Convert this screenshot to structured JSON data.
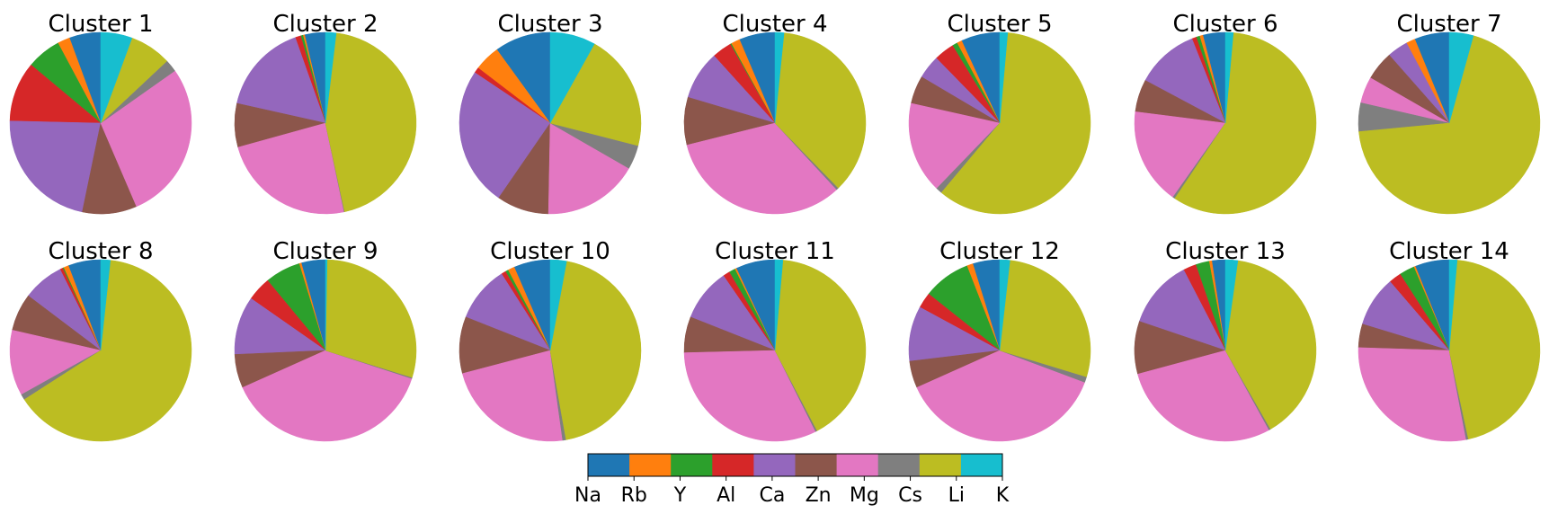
{
  "chart_data": {
    "type": "pie",
    "start_angle_deg": 90,
    "direction": "counterclockwise",
    "categories": [
      "Na",
      "Rb",
      "Y",
      "Al",
      "Ca",
      "Zn",
      "Mg",
      "Cs",
      "Li",
      "K"
    ],
    "colors": [
      "#1f77b4",
      "#ff7f0e",
      "#2ca02c",
      "#d62728",
      "#9467bd",
      "#8c564b",
      "#e377c2",
      "#7f7f7f",
      "#bcbd22",
      "#17becf"
    ],
    "legend": {
      "type": "colorbar",
      "placement": "bottom-center",
      "labels": [
        "Na",
        "Rb",
        "Y",
        "Al",
        "Ca",
        "Zn",
        "Mg",
        "Cs",
        "Li",
        "K"
      ]
    },
    "charts": [
      {
        "title": "Cluster 1",
        "values": [
          5.6,
          2.2,
          6.1,
          10.7,
          22.1,
          9.7,
          28.3,
          2.2,
          7.4,
          5.6
        ]
      },
      {
        "title": "Cluster 2",
        "values": [
          3.7,
          0.3,
          0.4,
          1.0,
          16.1,
          7.8,
          24.0,
          0.1,
          44.7,
          1.9
        ]
      },
      {
        "title": "Cluster 3",
        "values": [
          10.0,
          4.6,
          0.0,
          1.0,
          24.8,
          9.3,
          17.0,
          4.3,
          20.9,
          8.1
        ]
      },
      {
        "title": "Cluster 4",
        "values": [
          6.4,
          1.6,
          0.2,
          3.5,
          8.7,
          8.5,
          33.0,
          0.4,
          36.1,
          1.6
        ]
      },
      {
        "title": "Cluster 5",
        "values": [
          6.9,
          0.9,
          0.9,
          3.6,
          4.2,
          5.0,
          16.3,
          1.1,
          59.7,
          1.4
        ]
      },
      {
        "title": "Cluster 6",
        "values": [
          4.0,
          0.6,
          0.6,
          0.8,
          11.2,
          5.8,
          17.2,
          0.4,
          58.0,
          1.4
        ]
      },
      {
        "title": "Cluster 7",
        "values": [
          6.2,
          1.6,
          0.0,
          0.0,
          3.7,
          5.2,
          4.7,
          5.1,
          69.2,
          4.3
        ]
      },
      {
        "title": "Cluster 8",
        "values": [
          5.8,
          0.9,
          0.2,
          0.5,
          7.3,
          6.7,
          11.7,
          1.0,
          64.2,
          1.7
        ]
      },
      {
        "title": "Cluster 9",
        "values": [
          4.3,
          0.4,
          6.3,
          4.3,
          10.4,
          6.0,
          38.3,
          0.2,
          29.5,
          0.3
        ]
      },
      {
        "title": "Cluster 10",
        "values": [
          6.5,
          1.2,
          0.5,
          0.8,
          10.0,
          10.1,
          23.1,
          0.6,
          44.3,
          2.9
        ]
      },
      {
        "title": "Cluster 11",
        "values": [
          7.0,
          0.3,
          1.1,
          1.2,
          9.4,
          6.4,
          32.0,
          0.3,
          40.9,
          1.4
        ]
      },
      {
        "title": "Cluster 12",
        "values": [
          4.8,
          1.1,
          8.4,
          2.8,
          9.8,
          4.8,
          37.6,
          1.0,
          27.9,
          1.8
        ]
      },
      {
        "title": "Cluster 13",
        "values": [
          2.4,
          0.5,
          2.4,
          2.3,
          12.2,
          9.4,
          28.8,
          0.3,
          39.5,
          2.2
        ]
      },
      {
        "title": "Cluster 14",
        "values": [
          6.1,
          0.3,
          2.7,
          2.2,
          9.0,
          4.2,
          28.5,
          0.4,
          45.2,
          1.4
        ]
      }
    ]
  }
}
